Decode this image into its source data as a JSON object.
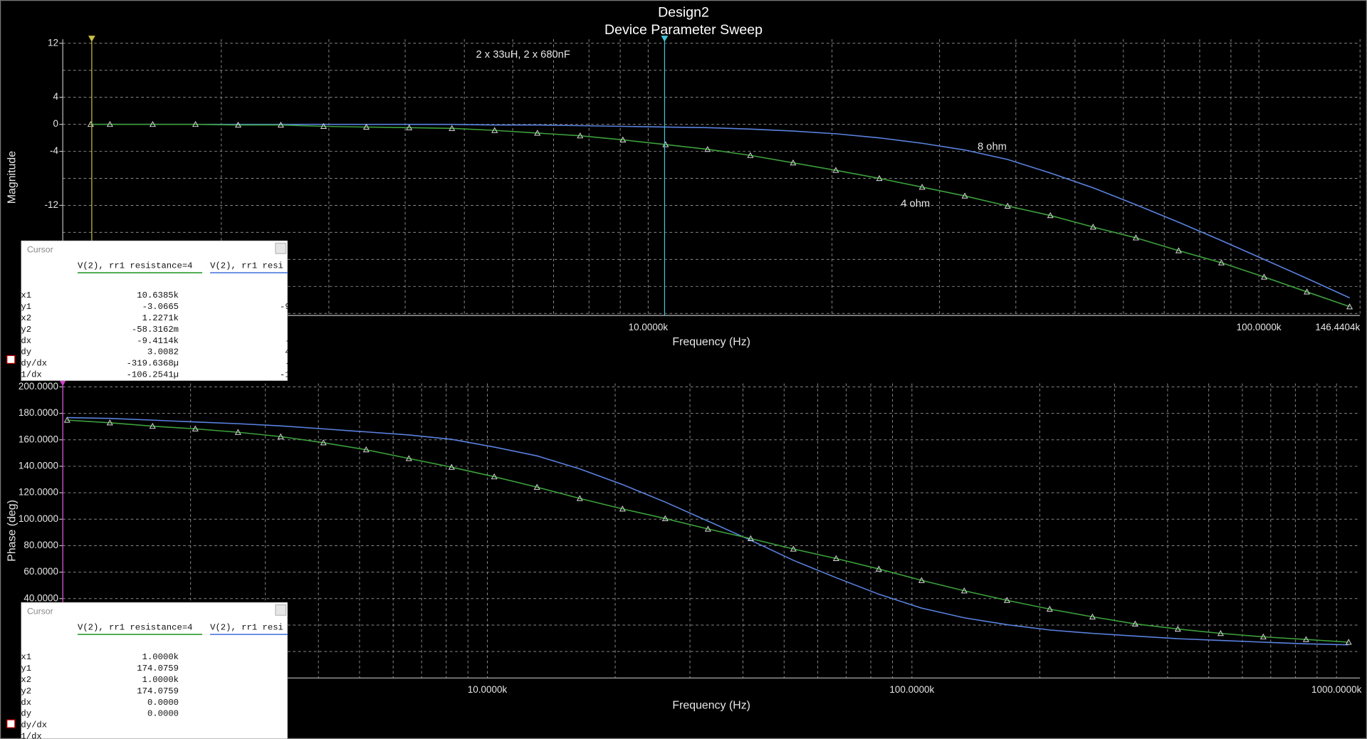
{
  "chart_data": [
    {
      "type": "line",
      "title": "Design2",
      "subtitle": "Device Parameter Sweep",
      "annotation": "2 x 33uH, 2 x 680nF",
      "xlabel": "Frequency (Hz)",
      "ylabel": "Magnitude",
      "xscale": "log",
      "xlim": [
        1100,
        146440.4
      ],
      "xticks": [
        {
          "value": 10000,
          "label": "10.0000k"
        },
        {
          "value": 100000,
          "label": "100.0000k"
        },
        {
          "value": 146440.4,
          "label": "146.4404k"
        }
      ],
      "xgrid": [
        2000,
        3000,
        4000,
        5000,
        6000,
        7000,
        8000,
        9000,
        20000,
        30000,
        40000,
        50000,
        60000,
        70000,
        80000,
        90000
      ],
      "ylim": [
        -28.3,
        12.6
      ],
      "yticks": [
        12,
        4,
        0,
        -4,
        -12
      ],
      "ygrid": [
        8,
        -8,
        -16,
        -20,
        -24,
        -28
      ],
      "x": [
        1222,
        1314,
        1544,
        1814,
        2131,
        2503,
        2941,
        3455,
        4061,
        4771,
        5605,
        6585,
        7737,
        9090,
        10680,
        12510,
        14700,
        17270,
        20290,
        23910,
        28090,
        33000,
        38780,
        45560,
        53530,
        62900,
        73900,
        86820,
        102000,
        119850,
        140800
      ],
      "series": [
        {
          "name": "8 ohm",
          "color": "#5a82e0",
          "values": [
            0,
            0,
            0,
            0,
            0,
            0,
            0,
            0,
            0,
            0,
            -0.1,
            -0.1,
            -0.2,
            -0.3,
            -0.4,
            -0.5,
            -0.7,
            -1.0,
            -1.4,
            -2.0,
            -2.8,
            -3.8,
            -5.2,
            -7.2,
            -9.4,
            -11.9,
            -14.5,
            -17.2,
            -20.0,
            -22.8,
            -25.7
          ]
        },
        {
          "name": "4 ohm",
          "color": "#3ca03c",
          "markers": "triangle",
          "values": [
            0,
            0,
            0,
            0,
            -0.1,
            -0.1,
            -0.3,
            -0.4,
            -0.5,
            -0.6,
            -0.9,
            -1.3,
            -1.7,
            -2.3,
            -3.0,
            -3.7,
            -4.6,
            -5.7,
            -6.8,
            -8.0,
            -9.3,
            -10.6,
            -12.1,
            -13.5,
            -15.2,
            -16.8,
            -18.7,
            -20.5,
            -22.6,
            -24.8,
            -27.0
          ]
        }
      ],
      "cursors": [
        {
          "x": 1227.1,
          "color": "#c8c040"
        },
        {
          "x": 10638.5,
          "color": "#40c8d8"
        }
      ]
    },
    {
      "type": "line",
      "xlabel": "Frequency (Hz)",
      "ylabel": "Phase (deg)",
      "xscale": "log",
      "xlim": [
        1000,
        1136000
      ],
      "xticks": [
        {
          "value": 10000,
          "label": "10.0000k"
        },
        {
          "value": 100000,
          "label": "100.0000k"
        },
        {
          "value": 1000000,
          "label": "1000.0000k"
        }
      ],
      "xgrid": [
        2000,
        3000,
        4000,
        5000,
        6000,
        7000,
        8000,
        9000,
        20000,
        30000,
        40000,
        50000,
        60000,
        70000,
        80000,
        90000,
        200000,
        300000,
        400000,
        500000,
        600000,
        700000,
        800000,
        900000
      ],
      "ylim": [
        -20,
        202.6
      ],
      "yticks": [
        {
          "value": 200,
          "label": "200.0000"
        },
        {
          "value": 180,
          "label": "180.0000"
        },
        {
          "value": 160,
          "label": "160.0000"
        },
        {
          "value": 140,
          "label": "140.0000"
        },
        {
          "value": 120,
          "label": "120.0000"
        },
        {
          "value": 100,
          "label": "100.0000"
        },
        {
          "value": 80,
          "label": "80.0000"
        },
        {
          "value": 60,
          "label": "60.0000"
        },
        {
          "value": 40,
          "label": "40.0000"
        }
      ],
      "ygrid": [
        20,
        0
      ],
      "x": [
        1024,
        1291,
        1627,
        2052,
        2587,
        3261,
        4111,
        5183,
        6534,
        8238,
        10380,
        13090,
        16510,
        20810,
        26240,
        33080,
        41710,
        52580,
        66290,
        83570,
        105400,
        132800,
        167500,
        211100,
        266200,
        335600,
        423000,
        533400,
        672400,
        847800,
        1068000
      ],
      "series": [
        {
          "color": "#5a82e0",
          "values": [
            176.8,
            176.2,
            174.9,
            173.5,
            172.2,
            170.5,
            168.3,
            166.0,
            163.7,
            160.4,
            154.5,
            147.9,
            138.0,
            126.2,
            113.0,
            98.6,
            84.1,
            68.9,
            55.8,
            43.3,
            32.8,
            25.5,
            20.3,
            16.3,
            13.7,
            11.7,
            9.7,
            8.4,
            7.1,
            5.8,
            5.1
          ]
        },
        {
          "color": "#3ca03c",
          "markers": "triangle",
          "values": [
            174.9,
            172.9,
            170.3,
            168.3,
            165.7,
            162.4,
            157.8,
            152.5,
            145.9,
            139.3,
            132.1,
            124.2,
            115.7,
            107.8,
            100.5,
            92.6,
            85.4,
            77.5,
            70.3,
            62.4,
            53.8,
            45.9,
            38.7,
            32.1,
            26.2,
            20.9,
            17.0,
            13.7,
            11.1,
            9.1,
            7.1
          ]
        }
      ],
      "cursors": [
        {
          "x": 1000,
          "color": "#d040d0"
        }
      ]
    }
  ],
  "cursor_panels": [
    {
      "title": "Cursor",
      "columns": [
        "V(2), rr1 resistance=4",
        "V(2), rr1 resi"
      ],
      "rows": [
        [
          "x1",
          "10.6385k"
        ],
        [
          "y1",
          "-3.0665",
          "-9"
        ],
        [
          "x2",
          "1.2271k"
        ],
        [
          "y2",
          "-58.3162m"
        ],
        [
          "dx",
          "-9.4114k",
          "-"
        ],
        [
          "dy",
          "3.0082",
          "4"
        ],
        [
          "dy/dx",
          "-319.6368µ",
          "-"
        ],
        [
          "1/dx",
          "-106.2541µ",
          "-1"
        ]
      ]
    },
    {
      "title": "Cursor",
      "columns": [
        "V(2), rr1 resistance=4",
        "V(2), rr1 resi"
      ],
      "rows": [
        [
          "x1",
          "1.0000k"
        ],
        [
          "y1",
          "174.0759"
        ],
        [
          "x2",
          "1.0000k"
        ],
        [
          "y2",
          "174.0759"
        ],
        [
          "dx",
          "0.0000"
        ],
        [
          "dy",
          "0.0000"
        ],
        [
          "dy/dx"
        ],
        [
          "1/dx"
        ]
      ]
    }
  ]
}
